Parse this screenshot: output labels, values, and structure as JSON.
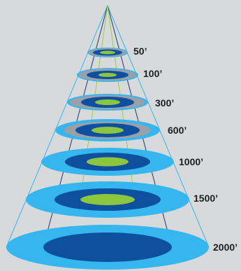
{
  "diagram": {
    "colors": {
      "background": "#d8d9db",
      "outer": "#35b6ee",
      "gray": "#9aa0a8",
      "middle": "#0f4fa0",
      "inner": "#8cc63f",
      "line_light": "#35b6ee",
      "line_dark": "#1a3a7a",
      "line_green": "#9ccf3a"
    },
    "levels": [
      {
        "label": "50’",
        "has_gray": true,
        "has_inner": true
      },
      {
        "label": "100’",
        "has_gray": true,
        "has_inner": true
      },
      {
        "label": "300’",
        "has_gray": true,
        "has_inner": true
      },
      {
        "label": "600’",
        "has_gray": true,
        "has_inner": true
      },
      {
        "label": "1000’",
        "has_gray": false,
        "has_inner": true
      },
      {
        "label": "1500’",
        "has_gray": false,
        "has_inner": true
      },
      {
        "label": "2000’",
        "has_gray": false,
        "has_inner": false
      }
    ]
  }
}
